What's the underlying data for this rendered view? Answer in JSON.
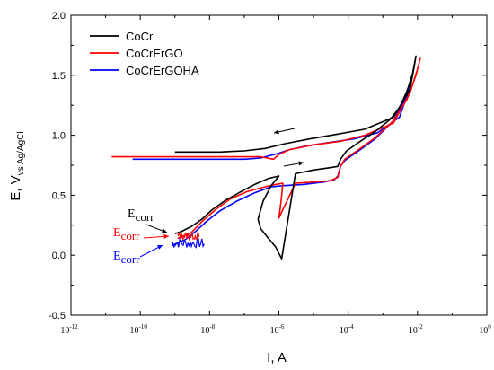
{
  "chart_data": {
    "type": "line",
    "title": "",
    "xlabel": "I, A",
    "ylabel": {
      "main": "E, V",
      "sub": "vs Ag/AgCl"
    },
    "x_scale": "log",
    "xlim": [
      1e-12,
      1
    ],
    "ylim": [
      -0.5,
      2.0
    ],
    "x_ticks": [
      {
        "exp": "-12",
        "value": 1e-12
      },
      {
        "exp": "-10",
        "value": 1e-10
      },
      {
        "exp": "-8",
        "value": 1e-08
      },
      {
        "exp": "-6",
        "value": 1e-06
      },
      {
        "exp": "-4",
        "value": 0.0001
      },
      {
        "exp": "-2",
        "value": 0.01
      },
      {
        "exp": "0",
        "value": 1
      }
    ],
    "x_tick_base": "10",
    "y_ticks": [
      {
        "label": "-0.5",
        "value": -0.5
      },
      {
        "label": "0.0",
        "value": 0.0
      },
      {
        "label": "0.5",
        "value": 0.5
      },
      {
        "label": "1.0",
        "value": 1.0
      },
      {
        "label": "1.5",
        "value": 1.5
      },
      {
        "label": "2.0",
        "value": 2.0
      }
    ],
    "grid": false,
    "legend": "top-left",
    "series": [
      {
        "name": "CoCr",
        "color": "#000000",
        "points": [
          [
            1e-09,
            0.18
          ],
          [
            1.6e-09,
            0.2
          ],
          [
            3e-09,
            0.24
          ],
          [
            6e-09,
            0.3
          ],
          [
            1.2e-08,
            0.38
          ],
          [
            3e-08,
            0.46
          ],
          [
            8e-08,
            0.53
          ],
          [
            2e-07,
            0.59
          ],
          [
            5e-07,
            0.64
          ],
          [
            1e-06,
            0.66
          ],
          [
            6e-07,
            0.58
          ],
          [
            3.5e-07,
            0.45
          ],
          [
            2.5e-07,
            0.3
          ],
          [
            3e-07,
            0.22
          ],
          [
            5e-07,
            0.14
          ],
          [
            8e-07,
            0.07
          ],
          [
            1.2e-06,
            -0.03
          ],
          [
            3e-06,
            0.68
          ],
          [
            1e-05,
            0.71
          ],
          [
            3e-05,
            0.73
          ],
          [
            5e-05,
            0.74
          ],
          [
            6e-05,
            0.8
          ],
          [
            9e-05,
            0.87
          ],
          [
            0.0002,
            0.94
          ],
          [
            0.0006,
            1.03
          ],
          [
            0.0016,
            1.13
          ],
          [
            0.003,
            1.23
          ],
          [
            0.005,
            1.37
          ],
          [
            0.007,
            1.5
          ],
          [
            0.009,
            1.66
          ],
          [
            0.008,
            1.57
          ],
          [
            0.006,
            1.38
          ],
          [
            0.002,
            1.15
          ],
          [
            0.0003,
            1.05
          ],
          [
            5e-05,
            1.01
          ],
          [
            8e-06,
            0.97
          ],
          [
            1.5e-06,
            0.93
          ],
          [
            4e-07,
            0.89
          ],
          [
            1e-07,
            0.87
          ],
          [
            2e-08,
            0.86
          ],
          [
            3e-09,
            0.86
          ],
          [
            1e-09,
            0.86
          ]
        ]
      },
      {
        "name": "CoCrErGO",
        "color": "#ff0000",
        "points": [
          [
            1.2e-09,
            0.14
          ],
          [
            3e-09,
            0.19
          ],
          [
            6e-09,
            0.28
          ],
          [
            1.5e-08,
            0.38
          ],
          [
            4e-08,
            0.47
          ],
          [
            1.2e-07,
            0.53
          ],
          [
            4e-07,
            0.57
          ],
          [
            8e-07,
            0.59
          ],
          [
            1.3e-06,
            0.6
          ],
          [
            1.2e-06,
            0.5
          ],
          [
            1.1e-06,
            0.4
          ],
          [
            1e-06,
            0.31
          ],
          [
            3e-06,
            0.6
          ],
          [
            1e-05,
            0.61
          ],
          [
            3e-05,
            0.62
          ],
          [
            5e-05,
            0.65
          ],
          [
            6e-05,
            0.74
          ],
          [
            8e-05,
            0.8
          ],
          [
            0.0002,
            0.88
          ],
          [
            0.0006,
            0.98
          ],
          [
            0.002,
            1.12
          ],
          [
            0.005,
            1.3
          ],
          [
            0.009,
            1.5
          ],
          [
            0.012,
            1.64
          ],
          [
            0.01,
            1.55
          ],
          [
            0.006,
            1.35
          ],
          [
            0.002,
            1.1
          ],
          [
            0.0003,
            1.0
          ],
          [
            6e-05,
            0.95
          ],
          [
            1e-05,
            0.92
          ],
          [
            2e-06,
            0.88
          ],
          [
            1e-06,
            0.84
          ],
          [
            7e-07,
            0.8
          ],
          [
            3e-07,
            0.82
          ],
          [
            1e-07,
            0.82
          ],
          [
            1e-08,
            0.82
          ],
          [
            1e-09,
            0.82
          ],
          [
            1e-10,
            0.82
          ],
          [
            1.5e-11,
            0.82
          ]
        ]
      },
      {
        "name": "CoCrErGOHA",
        "color": "#0000ff",
        "points": [
          [
            8e-10,
            0.08
          ],
          [
            2e-09,
            0.13
          ],
          [
            4e-09,
            0.2
          ],
          [
            8e-09,
            0.28
          ],
          [
            2e-08,
            0.37
          ],
          [
            6e-08,
            0.45
          ],
          [
            2e-07,
            0.52
          ],
          [
            6e-07,
            0.57
          ],
          [
            1.4e-06,
            0.58
          ],
          [
            5e-06,
            0.59
          ],
          [
            2e-05,
            0.61
          ],
          [
            4e-05,
            0.63
          ],
          [
            5e-05,
            0.66
          ],
          [
            6e-05,
            0.74
          ],
          [
            8e-05,
            0.79
          ],
          [
            0.0002,
            0.87
          ],
          [
            0.0006,
            0.97
          ],
          [
            0.002,
            1.12
          ],
          [
            0.004,
            1.28
          ],
          [
            0.007,
            1.5
          ],
          [
            0.006,
            1.4
          ],
          [
            0.003,
            1.15
          ],
          [
            0.0007,
            1.02
          ],
          [
            0.00015,
            0.97
          ],
          [
            3e-05,
            0.94
          ],
          [
            6e-06,
            0.91
          ],
          [
            2e-06,
            0.88
          ],
          [
            1e-06,
            0.85
          ],
          [
            3e-07,
            0.81
          ],
          [
            1e-07,
            0.8
          ],
          [
            1e-08,
            0.8
          ],
          [
            1e-09,
            0.8
          ],
          [
            1e-10,
            0.8
          ],
          [
            6e-11,
            0.8
          ]
        ]
      }
    ],
    "annotations": [
      {
        "id": "ecorr-black",
        "base": "E",
        "sub": "corr",
        "color": "#000000"
      },
      {
        "id": "ecorr-red",
        "base": "E",
        "sub": "corr",
        "color": "#ff0000"
      },
      {
        "id": "ecorr-blue",
        "base": "E",
        "sub": "corr",
        "color": "#0000ff"
      }
    ]
  }
}
